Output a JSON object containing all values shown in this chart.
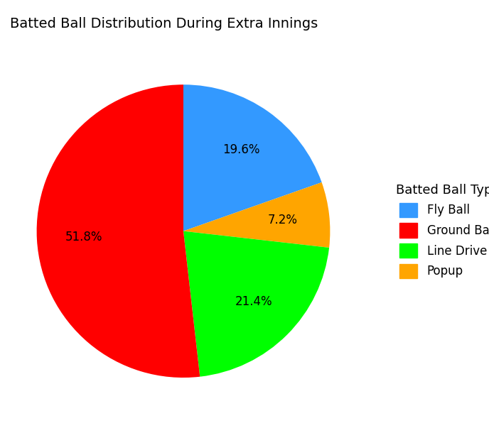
{
  "title": "Batted Ball Distribution During Extra Innings",
  "legend_title": "Batted Ball Type",
  "labels": [
    "Fly Ball",
    "Ground Ball",
    "Line Drive",
    "Popup"
  ],
  "values": [
    19.6,
    51.8,
    21.4,
    7.2
  ],
  "colors": [
    "#3399FF",
    "#FF0000",
    "#00FF00",
    "#FFA500"
  ],
  "title_fontsize": 14,
  "label_fontsize": 12,
  "legend_fontsize": 12,
  "legend_title_fontsize": 13,
  "pct_distance": 0.68
}
